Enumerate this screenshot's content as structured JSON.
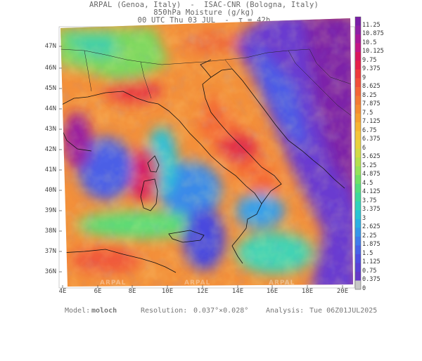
{
  "header": {
    "line1": "ARPAL (Genoa, Italy)  -  ISAC-CNR (Bologna, Italy)",
    "line2": "850hPa Moisture (g/kg)",
    "line3": "00 UTC Thu 03 JUL  -  τ = 42h"
  },
  "map": {
    "lat_labels": [
      "47N",
      "46N",
      "45N",
      "44N",
      "43N",
      "42N",
      "41N",
      "40N",
      "39N",
      "38N",
      "37N",
      "36N"
    ],
    "lon_labels": [
      "4E",
      "6E",
      "8E",
      "10E",
      "12E",
      "14E",
      "16E",
      "18E",
      "20E"
    ],
    "watermark": "ARPAL"
  },
  "colorbar": {
    "labels": [
      "11.25",
      "10.875",
      "10.5",
      "10.125",
      "9.75",
      "9.375",
      "9",
      "8.625",
      "8.25",
      "7.875",
      "7.5",
      "7.125",
      "6.75",
      "6.375",
      "6",
      "5.625",
      "5.25",
      "4.875",
      "4.5",
      "4.125",
      "3.75",
      "3.375",
      "3",
      "2.625",
      "2.25",
      "1.875",
      "1.5",
      "1.125",
      "0.75",
      "0.375",
      "0"
    ],
    "colors": [
      "#7a1fa8",
      "#8e1fa6",
      "#a8189a",
      "#c21686",
      "#d9155c",
      "#e6204a",
      "#ee3a3c",
      "#f24f3a",
      "#f46536",
      "#f37a33",
      "#f58c30",
      "#f6a030",
      "#f7b433",
      "#f5c53a",
      "#e8d23e",
      "#d2db46",
      "#b5e04d",
      "#96e35a",
      "#72e166",
      "#54dd7f",
      "#3ed89c",
      "#2fd2bb",
      "#28c5d4",
      "#2bb0e3",
      "#3596ea",
      "#3f7cec",
      "#4763e8",
      "#4f4ee2",
      "#5940d6",
      "#6538c8",
      "#c8c8c8"
    ]
  },
  "footer": {
    "model_label": "Model:",
    "model_value": "moloch",
    "resolution_label": "Resolution:",
    "resolution_value": "0.037°×0.028°",
    "analysis_label": "Analysis:",
    "analysis_value": "Tue 06Z01JUL2025"
  }
}
